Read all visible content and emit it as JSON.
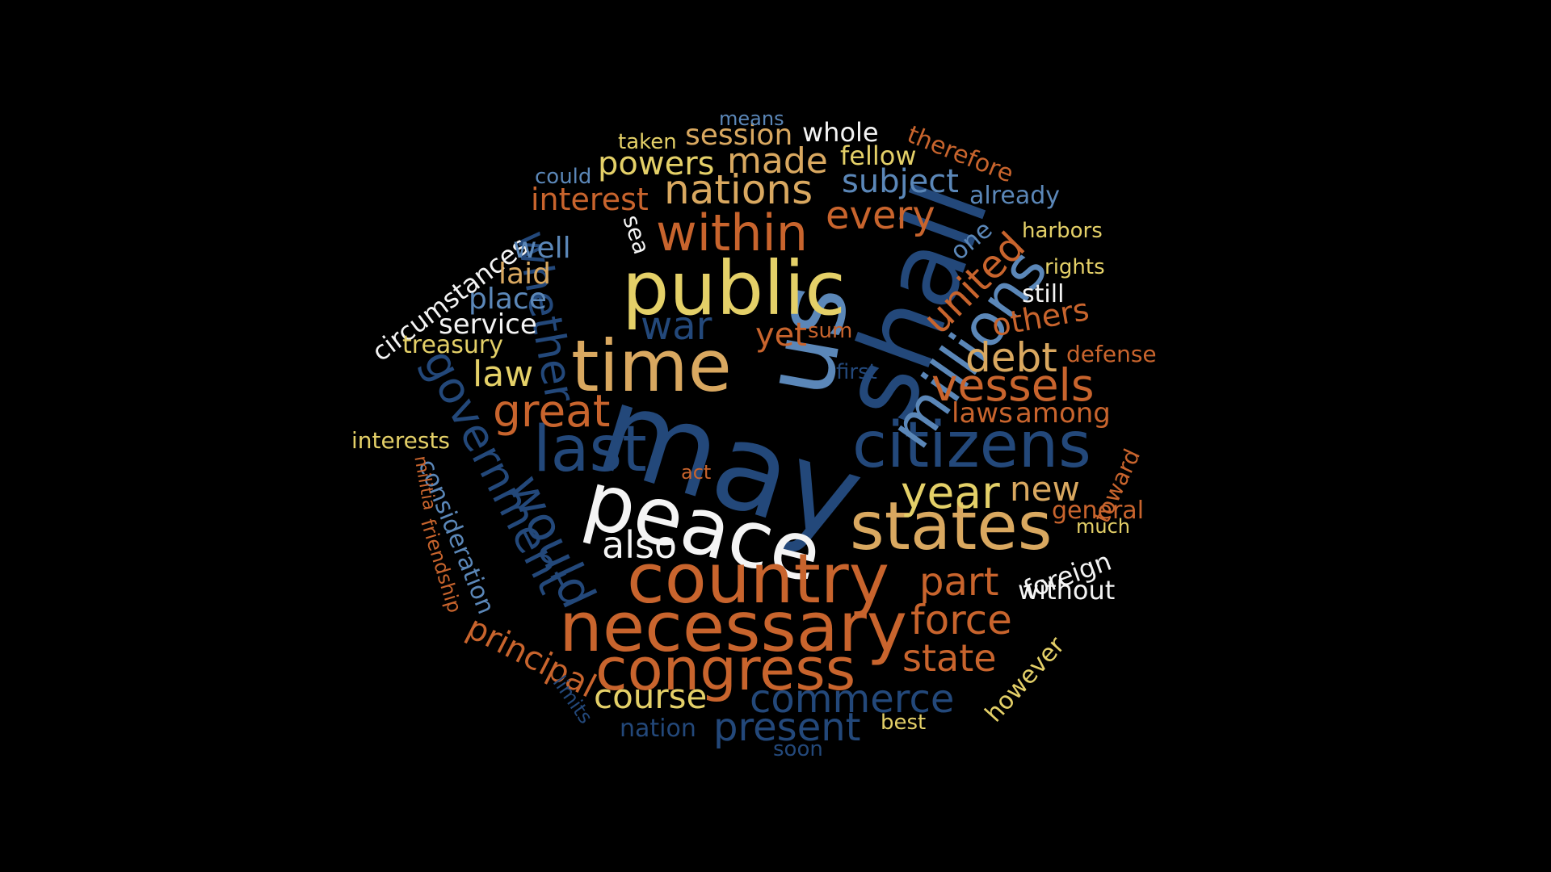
{
  "palette": {
    "background": "#000000",
    "navy": "#23487A",
    "steel": "#5B87B8",
    "orange": "#C8642D",
    "gold": "#D9A860",
    "yellow": "#E4D068",
    "white": "#F4F4F4"
  },
  "words": [
    {
      "text": "may",
      "color": "#23487A"
    },
    {
      "text": "shall",
      "color": "#23487A"
    },
    {
      "text": "us",
      "color": "#5B87B8"
    },
    {
      "text": "peace",
      "color": "#F4F4F4"
    },
    {
      "text": "public",
      "color": "#E4D068"
    },
    {
      "text": "time",
      "color": "#D9A860"
    },
    {
      "text": "country",
      "color": "#C8642D"
    },
    {
      "text": "necessary",
      "color": "#C8642D"
    },
    {
      "text": "states",
      "color": "#D9A860"
    },
    {
      "text": "citizens",
      "color": "#23487A"
    },
    {
      "text": "congress",
      "color": "#C8642D"
    },
    {
      "text": "millions",
      "color": "#5B87B8"
    },
    {
      "text": "last",
      "color": "#23487A"
    },
    {
      "text": "government",
      "color": "#23487A"
    },
    {
      "text": "would",
      "color": "#23487A"
    },
    {
      "text": "whether",
      "color": "#23487A"
    },
    {
      "text": "within",
      "color": "#C8642D"
    },
    {
      "text": "vessels",
      "color": "#C8642D"
    },
    {
      "text": "nations",
      "color": "#D9A860"
    },
    {
      "text": "great",
      "color": "#C8642D"
    },
    {
      "text": "year",
      "color": "#E4D068"
    },
    {
      "text": "war",
      "color": "#23487A"
    },
    {
      "text": "every",
      "color": "#C8642D"
    },
    {
      "text": "united",
      "color": "#C8642D"
    },
    {
      "text": "made",
      "color": "#D9A860"
    },
    {
      "text": "debt",
      "color": "#D9A860"
    },
    {
      "text": "commerce",
      "color": "#23487A"
    },
    {
      "text": "present",
      "color": "#23487A"
    },
    {
      "text": "force",
      "color": "#C8642D"
    },
    {
      "text": "part",
      "color": "#C8642D"
    },
    {
      "text": "state",
      "color": "#C8642D"
    },
    {
      "text": "also",
      "color": "#F4F4F4"
    },
    {
      "text": "law",
      "color": "#E4D068"
    },
    {
      "text": "course",
      "color": "#E4D068"
    },
    {
      "text": "new",
      "color": "#D9A860"
    },
    {
      "text": "subject",
      "color": "#5B87B8"
    },
    {
      "text": "powers",
      "color": "#E4D068"
    },
    {
      "text": "session",
      "color": "#D9A860"
    },
    {
      "text": "interest",
      "color": "#C8642D"
    },
    {
      "text": "principal",
      "color": "#C8642D"
    },
    {
      "text": "consideration",
      "color": "#5B87B8"
    },
    {
      "text": "others",
      "color": "#C8642D"
    },
    {
      "text": "laws",
      "color": "#C8642D"
    },
    {
      "text": "among",
      "color": "#C8642D"
    },
    {
      "text": "yet",
      "color": "#C8642D"
    },
    {
      "text": "circumstances",
      "color": "#F4F4F4"
    },
    {
      "text": "place",
      "color": "#5B87B8"
    },
    {
      "text": "service",
      "color": "#F4F4F4"
    },
    {
      "text": "well",
      "color": "#5B87B8"
    },
    {
      "text": "laid",
      "color": "#D9A860"
    },
    {
      "text": "foreign",
      "color": "#F4F4F4"
    },
    {
      "text": "without",
      "color": "#F4F4F4"
    },
    {
      "text": "general",
      "color": "#C8642D"
    },
    {
      "text": "whole",
      "color": "#F4F4F4"
    },
    {
      "text": "fellow",
      "color": "#E4D068"
    },
    {
      "text": "treasury",
      "color": "#E4D068"
    },
    {
      "text": "therefore",
      "color": "#C8642D"
    },
    {
      "text": "already",
      "color": "#5B87B8"
    },
    {
      "text": "however",
      "color": "#E4D068"
    },
    {
      "text": "toward",
      "color": "#C8642D"
    },
    {
      "text": "defense",
      "color": "#C8642D"
    },
    {
      "text": "interests",
      "color": "#E4D068"
    },
    {
      "text": "nation",
      "color": "#23487A"
    },
    {
      "text": "means",
      "color": "#5B87B8"
    },
    {
      "text": "one",
      "color": "#5B87B8"
    },
    {
      "text": "harbors",
      "color": "#E4D068"
    },
    {
      "text": "still",
      "color": "#F4F4F4"
    },
    {
      "text": "rights",
      "color": "#E4D068"
    },
    {
      "text": "sea",
      "color": "#F4F4F4"
    },
    {
      "text": "sum",
      "color": "#C8642D"
    },
    {
      "text": "first",
      "color": "#23487A"
    },
    {
      "text": "taken",
      "color": "#E4D068"
    },
    {
      "text": "could",
      "color": "#5B87B8"
    },
    {
      "text": "act",
      "color": "#C8642D"
    },
    {
      "text": "militia",
      "color": "#C8642D"
    },
    {
      "text": "friendship",
      "color": "#C8642D"
    },
    {
      "text": "limits",
      "color": "#23487A"
    },
    {
      "text": "best",
      "color": "#E4D068"
    },
    {
      "text": "soon",
      "color": "#23487A"
    },
    {
      "text": "much",
      "color": "#E4D068"
    }
  ]
}
